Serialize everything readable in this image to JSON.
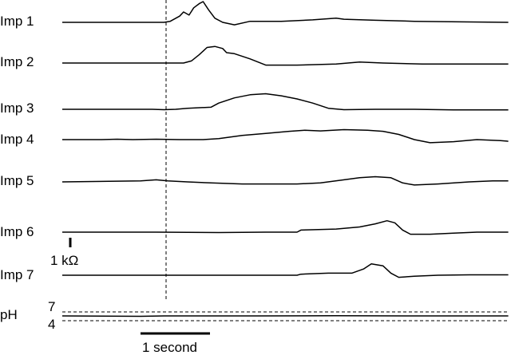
{
  "chart_data": {
    "type": "line",
    "title": "",
    "series": [
      {
        "name": "Imp 1",
        "points": [
          [
            0,
            0
          ],
          [
            1.3,
            0
          ],
          [
            1.38,
            0.05
          ],
          [
            1.5,
            0.3
          ],
          [
            1.55,
            0.5
          ],
          [
            1.62,
            0.35
          ],
          [
            1.68,
            0.7
          ],
          [
            1.75,
            0.9
          ],
          [
            1.8,
            1.0
          ],
          [
            1.87,
            0.6
          ],
          [
            1.95,
            0.2
          ],
          [
            2.05,
            0
          ],
          [
            2.2,
            -0.12
          ],
          [
            2.4,
            0.05
          ],
          [
            2.8,
            0.05
          ],
          [
            3.2,
            0.12
          ],
          [
            3.5,
            0.2
          ],
          [
            3.6,
            0.15
          ],
          [
            4.0,
            0.1
          ],
          [
            4.5,
            0.05
          ],
          [
            5.2,
            0.02
          ],
          [
            5.7,
            0
          ]
        ]
      },
      {
        "name": "Imp 2",
        "points": [
          [
            0,
            0
          ],
          [
            1.55,
            0
          ],
          [
            1.65,
            0.1
          ],
          [
            1.75,
            0.4
          ],
          [
            1.85,
            0.75
          ],
          [
            1.95,
            0.8
          ],
          [
            2.05,
            0.7
          ],
          [
            2.1,
            0.5
          ],
          [
            2.2,
            0.45
          ],
          [
            2.4,
            0.2
          ],
          [
            2.6,
            -0.1
          ],
          [
            3.0,
            -0.1
          ],
          [
            3.5,
            -0.05
          ],
          [
            3.8,
            0.05
          ],
          [
            4.1,
            0
          ],
          [
            4.6,
            -0.05
          ],
          [
            5.7,
            -0.05
          ]
        ]
      },
      {
        "name": "Imp 3",
        "points": [
          [
            0,
            0
          ],
          [
            1.15,
            0
          ],
          [
            1.3,
            -0.02
          ],
          [
            1.45,
            0
          ],
          [
            1.6,
            0.05
          ],
          [
            1.9,
            0.1
          ],
          [
            2.0,
            0.3
          ],
          [
            2.2,
            0.55
          ],
          [
            2.4,
            0.7
          ],
          [
            2.6,
            0.75
          ],
          [
            2.8,
            0.65
          ],
          [
            3.0,
            0.5
          ],
          [
            3.2,
            0.3
          ],
          [
            3.4,
            0.05
          ],
          [
            3.6,
            -0.02
          ],
          [
            4.0,
            0
          ],
          [
            4.5,
            0
          ],
          [
            5.0,
            -0.03
          ],
          [
            5.7,
            -0.03
          ]
        ]
      },
      {
        "name": "Imp 4",
        "points": [
          [
            0,
            0
          ],
          [
            0.5,
            0
          ],
          [
            0.7,
            0.02
          ],
          [
            0.9,
            0
          ],
          [
            1.2,
            0.02
          ],
          [
            1.5,
            0
          ],
          [
            1.8,
            0
          ],
          [
            2.0,
            0.05
          ],
          [
            2.3,
            0.2
          ],
          [
            2.6,
            0.3
          ],
          [
            2.9,
            0.4
          ],
          [
            3.1,
            0.45
          ],
          [
            3.3,
            0.42
          ],
          [
            3.6,
            0.48
          ],
          [
            3.9,
            0.45
          ],
          [
            4.1,
            0.4
          ],
          [
            4.3,
            0.25
          ],
          [
            4.5,
            0
          ],
          [
            4.7,
            -0.15
          ],
          [
            5.0,
            -0.1
          ],
          [
            5.3,
            0
          ],
          [
            5.6,
            -0.05
          ],
          [
            5.7,
            -0.08
          ]
        ]
      },
      {
        "name": "Imp 5",
        "points": [
          [
            0,
            0
          ],
          [
            1.0,
            0.05
          ],
          [
            1.2,
            0.1
          ],
          [
            1.35,
            0.05
          ],
          [
            1.6,
            0
          ],
          [
            1.9,
            -0.05
          ],
          [
            2.3,
            -0.1
          ],
          [
            2.8,
            -0.1
          ],
          [
            3.0,
            -0.1
          ],
          [
            3.3,
            -0.05
          ],
          [
            3.6,
            0.1
          ],
          [
            3.8,
            0.2
          ],
          [
            4.0,
            0.25
          ],
          [
            4.2,
            0.2
          ],
          [
            4.35,
            -0.05
          ],
          [
            4.5,
            -0.15
          ],
          [
            4.8,
            -0.1
          ],
          [
            5.2,
            0
          ],
          [
            5.5,
            0.05
          ],
          [
            5.7,
            0.05
          ]
        ]
      },
      {
        "name": "Imp 6",
        "points": [
          [
            0,
            0
          ],
          [
            1.2,
            0
          ],
          [
            2.0,
            -0.02
          ],
          [
            2.6,
            0
          ],
          [
            3.0,
            0
          ],
          [
            3.05,
            0.1
          ],
          [
            3.5,
            0.15
          ],
          [
            3.8,
            0.25
          ],
          [
            4.0,
            0.4
          ],
          [
            4.15,
            0.55
          ],
          [
            4.25,
            0.45
          ],
          [
            4.35,
            0.1
          ],
          [
            4.45,
            -0.1
          ],
          [
            4.7,
            -0.1
          ],
          [
            5.0,
            -0.05
          ],
          [
            5.3,
            0
          ],
          [
            5.7,
            0
          ]
        ]
      },
      {
        "name": "Imp 7",
        "points": [
          [
            0,
            0
          ],
          [
            2.5,
            0
          ],
          [
            3.0,
            0
          ],
          [
            3.05,
            0.05
          ],
          [
            3.4,
            0.1
          ],
          [
            3.7,
            0.1
          ],
          [
            3.85,
            0.3
          ],
          [
            3.95,
            0.55
          ],
          [
            4.1,
            0.45
          ],
          [
            4.2,
            0.1
          ],
          [
            4.3,
            -0.1
          ],
          [
            4.5,
            -0.05
          ],
          [
            4.8,
            0
          ],
          [
            5.2,
            0.02
          ],
          [
            5.7,
            0.02
          ]
        ]
      },
      {
        "name": "pH",
        "points": [
          [
            0,
            0
          ],
          [
            1.0,
            -0.02
          ],
          [
            1.3,
            0
          ],
          [
            2.5,
            0
          ],
          [
            3.5,
            0.01
          ],
          [
            4.5,
            0
          ],
          [
            5.7,
            0
          ]
        ]
      }
    ],
    "ph_ticks": [
      "7",
      "4"
    ],
    "impedance_scale_label": "1 kΩ",
    "time_scale_label": "1 second"
  }
}
